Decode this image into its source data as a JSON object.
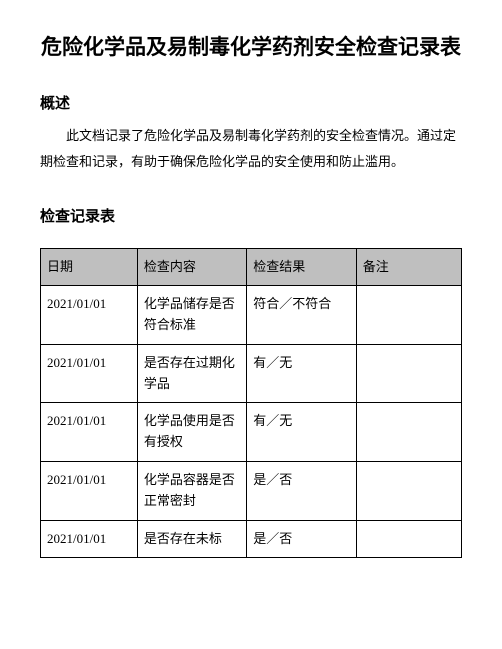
{
  "title": "危险化学品及易制毒化学药剂安全检查记录表",
  "overview": {
    "heading": "概述",
    "text": "此文档记录了危险化学品及易制毒化学药剂的安全检查情况。通过定期检查和记录，有助于确保危险化学品的安全使用和防止滥用。"
  },
  "records": {
    "heading": "检查记录表"
  },
  "table": {
    "type": "table",
    "header_bg": "#bfbfbf",
    "border_color": "#000000",
    "columns": [
      {
        "label": "日期",
        "width": "23%"
      },
      {
        "label": "检查内容",
        "width": "26%"
      },
      {
        "label": "检查结果",
        "width": "26%"
      },
      {
        "label": "备注",
        "width": "25%"
      }
    ],
    "rows": [
      [
        "2021/01/01",
        "化学品储存是否符合标准",
        "符合／不符合",
        ""
      ],
      [
        "2021/01/01",
        "是否存在过期化学品",
        "有／无",
        ""
      ],
      [
        "2021/01/01",
        "化学品使用是否有授权",
        "有／无",
        ""
      ],
      [
        "2021/01/01",
        "化学品容器是否正常密封",
        "是／否",
        ""
      ],
      [
        "2021/01/01",
        "是否存在未标",
        "是／否",
        ""
      ]
    ]
  }
}
